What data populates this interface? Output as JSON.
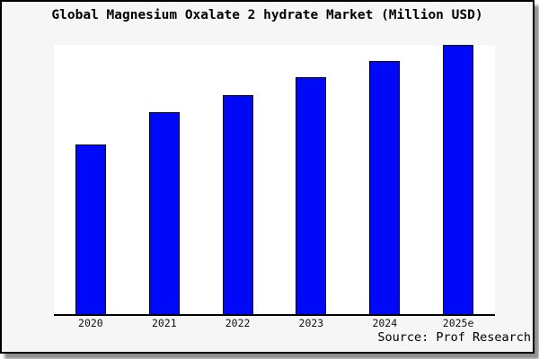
{
  "window": {
    "source_note": "Source: Prof Research"
  },
  "chart_data": {
    "type": "bar",
    "title": "Global Magnesium Oxalate 2 hydrate Market (Million USD)",
    "categories": [
      "2020",
      "2021",
      "2022",
      "2023",
      "2024",
      "2025e"
    ],
    "values": [
      63,
      75,
      81.5,
      88,
      94,
      100
    ],
    "value_note": "y-axis has no tick labels; values estimated relative to 2025e = 100",
    "unit": "Million USD",
    "xlabel": "",
    "ylabel": "",
    "ylim": [
      0,
      100
    ],
    "grid": false,
    "legend": false,
    "bar_color": "#0008f8",
    "bar_border_color": "#000000",
    "plot_background": "#ffffff",
    "figure_background": "#f6f6f6"
  }
}
